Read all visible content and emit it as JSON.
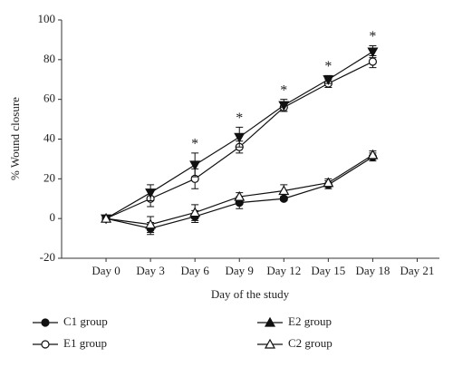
{
  "chart_data": {
    "type": "line",
    "y_label": "% Wound closure",
    "x_label": "Day of the study",
    "categories": [
      "Day 0",
      "Day 3",
      "Day 6",
      "Day 9",
      "Day 12",
      "Day 15",
      "Day 18",
      "Day 21"
    ],
    "significance": [
      null,
      null,
      "*",
      "*",
      "*",
      "*",
      "*",
      null
    ],
    "ylim": [
      -20,
      100
    ],
    "yticks": [
      -20,
      0,
      20,
      40,
      60,
      80,
      100
    ],
    "series": [
      {
        "name": "C1 group",
        "color": "#111111",
        "marker": "circle-filled",
        "values": [
          0,
          -5,
          1,
          8,
          10,
          17,
          31,
          null
        ],
        "errors": [
          0,
          3,
          3,
          3,
          1,
          2,
          2,
          null
        ]
      },
      {
        "name": "E1 group",
        "color": "#111111",
        "marker": "circle-open",
        "values": [
          0,
          10,
          20,
          36,
          56,
          68,
          79,
          null
        ],
        "errors": [
          0,
          4,
          5,
          3,
          2,
          2,
          3,
          null
        ]
      },
      {
        "name": "E2 group",
        "color": "#111111",
        "marker": "triangle-filled",
        "values": [
          0,
          13,
          27,
          41,
          57,
          70,
          84,
          null
        ],
        "errors": [
          0,
          4,
          6,
          5,
          3,
          2,
          3,
          null
        ]
      },
      {
        "name": "C2 group",
        "color": "#111111",
        "marker": "triangle-open",
        "values": [
          0,
          -3,
          3,
          11,
          14,
          18,
          32,
          null
        ],
        "errors": [
          0,
          4,
          4,
          2,
          3,
          2,
          2,
          null
        ]
      }
    ]
  }
}
